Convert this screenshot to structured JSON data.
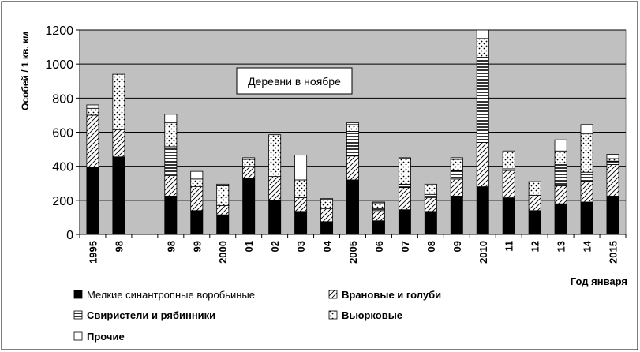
{
  "chart_data": {
    "type": "bar",
    "stacked": true,
    "annotation": "Деревни в ноябре",
    "xlabel": "Год января",
    "ylabel": "Особей / 1 кв. км",
    "ylim": [
      0,
      1200
    ],
    "yticks": [
      0,
      200,
      400,
      600,
      800,
      1000,
      1200
    ],
    "grid": true,
    "legend_position": "bottom",
    "categories": [
      "1995",
      "98",
      "",
      "98",
      "99",
      "2000",
      "01",
      "02",
      "03",
      "04",
      "2005",
      "06",
      "07",
      "08",
      "09",
      "2010",
      "11",
      "12",
      "13",
      "14",
      "2015"
    ],
    "series": [
      {
        "name": "Мелкие синантропные воробьиные",
        "pattern": "solid",
        "values": [
          395,
          455,
          0,
          225,
          140,
          115,
          330,
          200,
          135,
          75,
          320,
          80,
          145,
          135,
          225,
          280,
          215,
          140,
          180,
          190,
          225
        ]
      },
      {
        "name": "Врановые и голуби",
        "pattern": "diagonal",
        "values": [
          305,
          160,
          0,
          120,
          140,
          55,
          70,
          140,
          80,
          75,
          140,
          60,
          130,
          80,
          100,
          260,
          160,
          90,
          105,
          120,
          185
        ]
      },
      {
        "name": "Свиристели и рябинники",
        "pattern": "hlines",
        "values": [
          0,
          0,
          0,
          170,
          0,
          0,
          0,
          0,
          0,
          0,
          145,
          15,
          20,
          20,
          50,
          500,
          10,
          0,
          135,
          55,
          20
        ]
      },
      {
        "name": "Вьюрковые",
        "pattern": "dots",
        "values": [
          40,
          325,
          0,
          140,
          45,
          115,
          40,
          245,
          105,
          55,
          40,
          30,
          150,
          55,
          65,
          110,
          105,
          80,
          70,
          225,
          15
        ]
      },
      {
        "name": "Прочие",
        "pattern": "white",
        "values": [
          20,
          0,
          0,
          50,
          45,
          10,
          10,
          0,
          145,
          5,
          10,
          5,
          5,
          5,
          10,
          50,
          0,
          0,
          65,
          55,
          25
        ]
      }
    ]
  }
}
